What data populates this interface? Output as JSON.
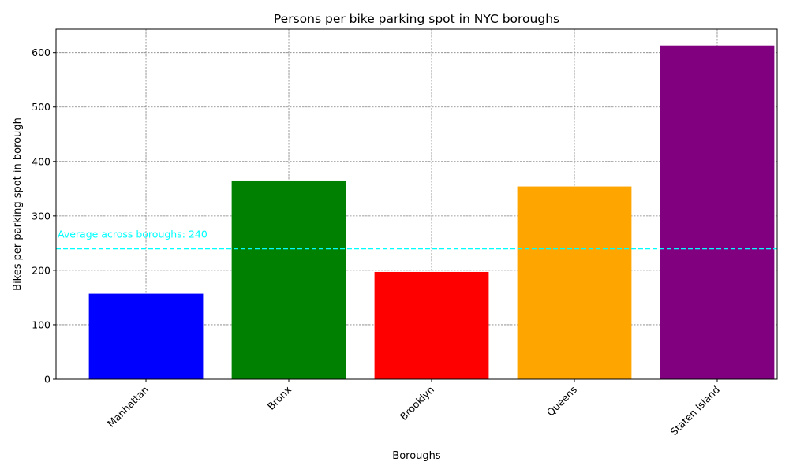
{
  "chart_data": {
    "type": "bar",
    "title": "Persons per bike parking spot in NYC boroughs",
    "xlabel": "Boroughs",
    "ylabel": "Bikes per parking spot in borough",
    "categories": [
      "Manhattan",
      "Bronx",
      "Brooklyn",
      "Queens",
      "Staten Island"
    ],
    "values": [
      157,
      365,
      197,
      354,
      613
    ],
    "colors": [
      "#0000ff",
      "#008000",
      "#ff0000",
      "#ffa500",
      "#800080"
    ],
    "ylim": [
      0,
      643
    ],
    "yticks": [
      0,
      100,
      200,
      300,
      400,
      500,
      600
    ],
    "grid": true,
    "average_line": {
      "value": 240,
      "label": "Average across boroughs: 240",
      "color": "#00ffff",
      "style": "dashed"
    }
  }
}
